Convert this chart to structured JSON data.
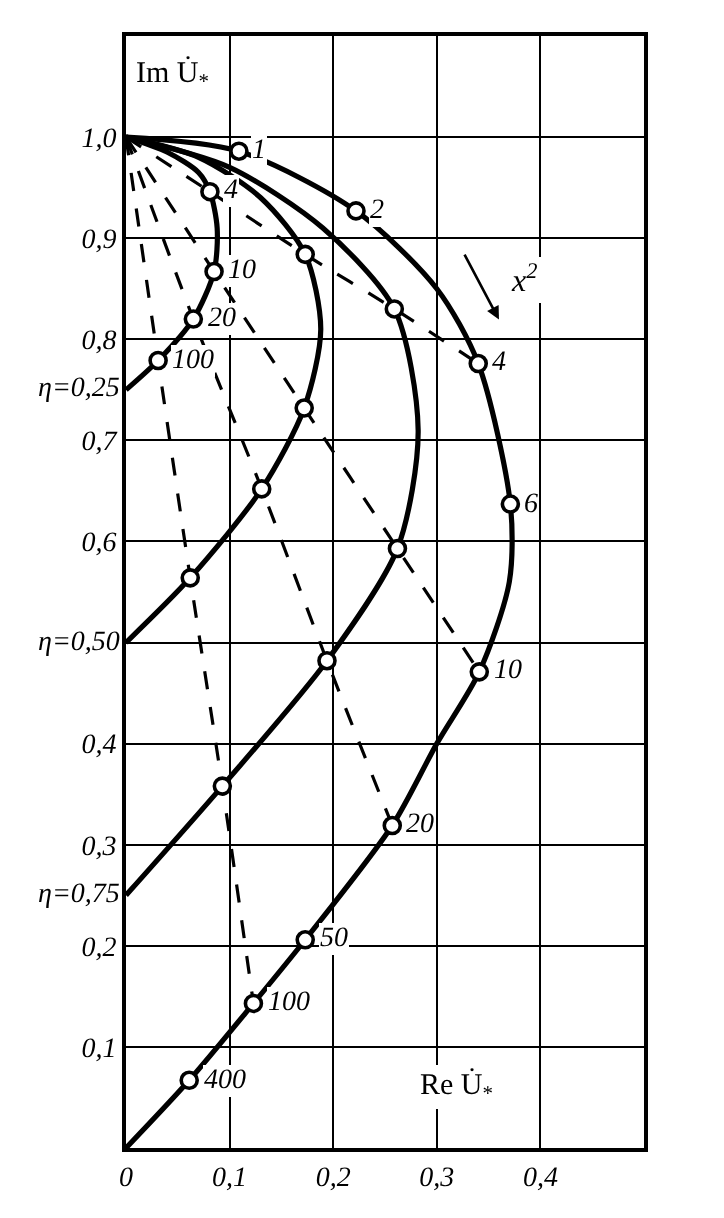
{
  "chart_data": {
    "type": "line",
    "xlabel": "Re U̇$_{*}$",
    "ylabel": "Im U̇$_{*}$",
    "xlim": [
      0,
      0.5
    ],
    "ylim": [
      0,
      1.1
    ],
    "xticks": [
      {
        "value": 0,
        "label": "0"
      },
      {
        "value": 0.1,
        "label": "0,1"
      },
      {
        "value": 0.2,
        "label": "0,2"
      },
      {
        "value": 0.3,
        "label": "0,3"
      },
      {
        "value": 0.4,
        "label": "0,4"
      },
      {
        "value": 0.5,
        "label": null
      }
    ],
    "yticks": [
      {
        "value": 0.1,
        "label": "0,1"
      },
      {
        "value": 0.2,
        "label": "0,2"
      },
      {
        "value": 0.3,
        "label": "0,3"
      },
      {
        "value": 0.4,
        "label": "0,4"
      },
      {
        "value": 0.5,
        "label": null
      },
      {
        "value": 0.6,
        "label": "0,6"
      },
      {
        "value": 0.7,
        "label": "0,7"
      },
      {
        "value": 0.8,
        "label": "0,8"
      },
      {
        "value": 0.9,
        "label": "0,9"
      },
      {
        "value": 1.0,
        "label": "1,0"
      }
    ],
    "grid": true,
    "legend": false,
    "series": [
      {
        "name": "η=0,25",
        "color": "#000000",
        "line_style": "solid",
        "marker": "none",
        "x": [
          0,
          0.04,
          0.07,
          0.081,
          0.088,
          0.085,
          0.065,
          0.031,
          0
        ],
        "values": [
          1,
          0.985,
          0.965,
          0.946,
          0.91,
          0.867,
          0.82,
          0.779,
          0.75
        ]
      },
      {
        "name": "η=0,50",
        "color": "#000000",
        "line_style": "solid",
        "marker": "none",
        "x": [
          0,
          0.07,
          0.13,
          0.173,
          0.188,
          0.172,
          0.131,
          0.062,
          0
        ],
        "values": [
          1,
          0.98,
          0.94,
          0.884,
          0.81,
          0.732,
          0.652,
          0.564,
          0.5
        ]
      },
      {
        "name": "η=0,75",
        "color": "#000000",
        "line_style": "solid",
        "marker": "none",
        "x": [
          0,
          0.1,
          0.19,
          0.259,
          0.282,
          0.262,
          0.194,
          0.093,
          0
        ],
        "values": [
          1,
          0.97,
          0.91,
          0.83,
          0.71,
          0.593,
          0.482,
          0.358,
          0.25
        ]
      },
      {
        "color": "#000000",
        "line_style": "solid",
        "marker": "none",
        "x": [
          0,
          0.109,
          0.222,
          0.3,
          0.34,
          0.371,
          0.37,
          0.341,
          0.3,
          0.257,
          0.173,
          0.123,
          0.061,
          0
        ],
        "values": [
          1,
          0.986,
          0.927,
          0.85,
          0.776,
          0.637,
          0.56,
          0.471,
          0.4,
          0.319,
          0.206,
          0.143,
          0.067,
          0
        ]
      },
      {
        "color": "#000000",
        "line_style": "dashed",
        "marker": "none",
        "x": [
          0,
          0.081,
          0.173,
          0.259,
          0.34
        ],
        "values": [
          1,
          0.946,
          0.884,
          0.83,
          0.776
        ]
      },
      {
        "color": "#000000",
        "line_style": "dashed",
        "marker": "none",
        "x": [
          0,
          0.085,
          0.172,
          0.262,
          0.341
        ],
        "values": [
          1,
          0.867,
          0.732,
          0.593,
          0.471
        ]
      },
      {
        "color": "#000000",
        "line_style": "dashed",
        "marker": "none",
        "x": [
          0,
          0.065,
          0.131,
          0.194,
          0.257
        ],
        "values": [
          1,
          0.82,
          0.652,
          0.482,
          0.319
        ]
      },
      {
        "color": "#000000",
        "line_style": "dashed",
        "marker": "none",
        "x": [
          0,
          0.031,
          0.062,
          0.093,
          0.123
        ],
        "values": [
          1,
          0.779,
          0.564,
          0.358,
          0.143
        ]
      },
      {
        "type": "scatter",
        "color": "#000000",
        "marker": "circle",
        "x": [
          0.081,
          0.085,
          0.065,
          0.031,
          0.173,
          0.172,
          0.131,
          0.062,
          0.259,
          0.262,
          0.194,
          0.093,
          0.109,
          0.222,
          0.34,
          0.371,
          0.341,
          0.257,
          0.173,
          0.123,
          0.061
        ],
        "values": [
          0.946,
          0.867,
          0.82,
          0.779,
          0.884,
          0.732,
          0.652,
          0.564,
          0.83,
          0.593,
          0.482,
          0.358,
          0.986,
          0.927,
          0.776,
          0.637,
          0.471,
          0.319,
          0.206,
          0.143,
          0.067
        ]
      }
    ],
    "annotations": [
      {
        "text": "1",
        "x": 0.109,
        "y": 0.986
      },
      {
        "text": "2",
        "x": 0.222,
        "y": 0.927
      },
      {
        "text": "4",
        "x": 0.34,
        "y": 0.776
      },
      {
        "text": "6",
        "x": 0.371,
        "y": 0.637
      },
      {
        "text": "10",
        "x": 0.341,
        "y": 0.471
      },
      {
        "text": "20",
        "x": 0.257,
        "y": 0.319
      },
      {
        "text": "50",
        "x": 0.173,
        "y": 0.206
      },
      {
        "text": "100",
        "x": 0.123,
        "y": 0.143
      },
      {
        "text": "400",
        "x": 0.061,
        "y": 0.067
      },
      {
        "text": "4",
        "x": 0.081,
        "y": 0.946
      },
      {
        "text": "10",
        "x": 0.085,
        "y": 0.867
      },
      {
        "text": "20",
        "x": 0.065,
        "y": 0.82
      },
      {
        "text": "100",
        "x": 0.031,
        "y": 0.779
      },
      "x$^{2}$"
    ]
  }
}
